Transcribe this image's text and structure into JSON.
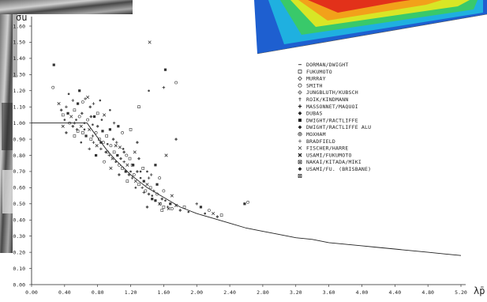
{
  "chart_data": {
    "type": "scatter",
    "ylabel": "σu",
    "xlabel": "λ̄p",
    "xlim": [
      0.0,
      5.2
    ],
    "ylim": [
      0.0,
      1.6
    ],
    "x_ticks": [
      "0.00",
      "0.40",
      "0.80",
      "1.20",
      "1.60",
      "2.00",
      "2.40",
      "2.80",
      "3.20",
      "3.60",
      "4.00",
      "4.40",
      "4.80",
      "5.20"
    ],
    "y_ticks": [
      "0.00",
      "0.10",
      "0.20",
      "0.30",
      "0.40",
      "0.50",
      "0.60",
      "0.70",
      "0.80",
      "0.90",
      "1.00",
      "1.10",
      "1.20",
      "1.30",
      "1.40",
      "1.50",
      "1.60"
    ],
    "grid": false,
    "legend_position": "top-right",
    "legend": [
      {
        "symbol": "dash",
        "label": "DORMAN/DWIGHT"
      },
      {
        "symbol": "square",
        "label": "FUKUMOTO"
      },
      {
        "symbol": "diamond",
        "label": "MURRAY"
      },
      {
        "symbol": "circle",
        "label": "SMITH"
      },
      {
        "symbol": "diamond-dot",
        "label": "JUNGBLUTH/KUBSCH"
      },
      {
        "symbol": "dagger",
        "label": "ROIK/KINDMANN"
      },
      {
        "symbol": "plus",
        "label": "MASSONNET/MAQUOI"
      },
      {
        "symbol": "filled-diamond",
        "label": "DUBAS"
      },
      {
        "symbol": "filled-square",
        "label": "DWIGHT/RACTLIFFE"
      },
      {
        "symbol": "filled-diamond",
        "label": "DWIGHT/RACTLIFFE ALU"
      },
      {
        "symbol": "circle-cross",
        "label": "MOXHAM"
      },
      {
        "symbol": "thin-plus",
        "label": "BRADFIELD"
      },
      {
        "symbol": "x",
        "label": "FISCHER/HARRE"
      },
      {
        "symbol": "bold-x",
        "label": "USAMI/FUKUMOTO"
      },
      {
        "symbol": "box-x",
        "label": "NAKAI/KITADA/MIKI"
      },
      {
        "symbol": "filled-diamond",
        "label": "USAMI/FU. (BRISBANE)"
      },
      {
        "symbol": "box-x",
        "label": ""
      }
    ],
    "series": [
      {
        "type": "line",
        "description_curve_x": [
          0.0,
          0.673,
          0.7,
          0.8,
          0.9,
          1.0,
          1.1,
          1.2,
          1.3,
          1.4,
          1.5,
          1.6,
          1.7,
          1.8,
          1.9,
          2.0,
          2.2,
          2.4,
          2.6,
          2.8,
          3.0,
          3.2,
          3.4,
          3.6,
          3.8,
          4.0,
          4.2,
          4.4,
          4.6,
          4.8,
          5.0,
          5.2
        ],
        "y": [
          1.0,
          1.0,
          0.98,
          0.91,
          0.84,
          0.78,
          0.73,
          0.68,
          0.64,
          0.6,
          0.57,
          0.54,
          0.51,
          0.48,
          0.46,
          0.44,
          0.41,
          0.38,
          0.35,
          0.33,
          0.31,
          0.29,
          0.28,
          0.26,
          0.25,
          0.24,
          0.23,
          0.22,
          0.21,
          0.2,
          0.19,
          0.18
        ]
      },
      {
        "type": "scatter",
        "points": [
          [
            0.27,
            1.36
          ],
          [
            0.26,
            1.22
          ],
          [
            0.33,
            1.12
          ],
          [
            0.36,
            1.08
          ],
          [
            0.38,
            1.05
          ],
          [
            0.4,
            1.02
          ],
          [
            0.42,
            1.1
          ],
          [
            0.44,
            1.06
          ],
          [
            0.46,
            1.0
          ],
          [
            0.48,
            1.04
          ],
          [
            0.5,
            0.98
          ],
          [
            0.52,
            1.08
          ],
          [
            0.54,
            1.02
          ],
          [
            0.55,
            0.96
          ],
          [
            0.56,
            1.12
          ],
          [
            0.58,
            1.04
          ],
          [
            0.6,
            0.98
          ],
          [
            0.61,
            1.06
          ],
          [
            0.62,
            0.94
          ],
          [
            0.64,
            1.0
          ],
          [
            0.65,
            1.15
          ],
          [
            0.66,
            0.92
          ],
          [
            0.68,
            1.02
          ],
          [
            0.7,
            0.96
          ],
          [
            0.71,
            1.1
          ],
          [
            0.72,
            0.9
          ],
          [
            0.74,
            0.99
          ],
          [
            0.75,
            0.88
          ],
          [
            0.76,
            1.04
          ],
          [
            0.78,
            0.94
          ],
          [
            0.79,
            0.86
          ],
          [
            0.8,
            0.98
          ],
          [
            0.82,
            0.9
          ],
          [
            0.83,
            1.14
          ],
          [
            0.84,
            0.84
          ],
          [
            0.86,
            0.95
          ],
          [
            0.87,
            0.88
          ],
          [
            0.88,
            1.05
          ],
          [
            0.9,
            0.82
          ],
          [
            0.91,
            0.92
          ],
          [
            0.92,
            0.87
          ],
          [
            0.94,
            0.8
          ],
          [
            0.95,
            0.96
          ],
          [
            0.96,
            0.86
          ],
          [
            0.98,
            0.78
          ],
          [
            0.99,
            0.9
          ],
          [
            1.0,
            0.82
          ],
          [
            1.02,
            0.76
          ],
          [
            1.03,
            0.88
          ],
          [
            1.04,
            0.8
          ],
          [
            1.06,
            0.74
          ],
          [
            1.07,
            0.85
          ],
          [
            1.08,
            0.78
          ],
          [
            1.1,
            0.72
          ],
          [
            1.11,
            0.84
          ],
          [
            1.12,
            0.76
          ],
          [
            1.14,
            0.7
          ],
          [
            1.15,
            0.8
          ],
          [
            1.16,
            0.74
          ],
          [
            1.18,
            0.68
          ],
          [
            1.19,
            0.78
          ],
          [
            1.2,
            0.7
          ],
          [
            1.22,
            0.66
          ],
          [
            1.23,
            0.74
          ],
          [
            1.24,
            0.68
          ],
          [
            1.26,
            0.64
          ],
          [
            1.28,
            0.7
          ],
          [
            1.3,
            0.62
          ],
          [
            1.32,
            0.66
          ],
          [
            1.34,
            0.6
          ],
          [
            1.36,
            0.64
          ],
          [
            1.38,
            0.58
          ],
          [
            1.4,
            0.62
          ],
          [
            1.42,
            0.56
          ],
          [
            1.44,
            0.6
          ],
          [
            1.46,
            0.55
          ],
          [
            1.48,
            0.58
          ],
          [
            1.5,
            0.52
          ],
          [
            1.52,
            0.56
          ],
          [
            1.55,
            0.5
          ],
          [
            1.58,
            0.53
          ],
          [
            1.6,
            0.48
          ],
          [
            1.62,
            0.52
          ],
          [
            1.65,
            0.48
          ],
          [
            1.68,
            0.5
          ],
          [
            1.7,
            0.47
          ],
          [
            1.75,
            0.49
          ],
          [
            1.8,
            0.46
          ],
          [
            1.85,
            0.48
          ],
          [
            1.9,
            0.45
          ],
          [
            2.0,
            0.5
          ],
          [
            2.05,
            0.48
          ],
          [
            2.15,
            0.46
          ],
          [
            2.2,
            0.44
          ],
          [
            2.25,
            0.42
          ],
          [
            2.3,
            0.43
          ],
          [
            0.45,
            1.18
          ],
          [
            0.5,
            1.14
          ],
          [
            0.58,
            1.2
          ],
          [
            0.62,
            1.13
          ],
          [
            0.68,
            1.16
          ],
          [
            0.72,
            1.04
          ],
          [
            0.8,
            1.06
          ],
          [
            0.85,
            1.02
          ],
          [
            1.0,
            1.0
          ],
          [
            1.05,
            0.98
          ],
          [
            1.1,
            0.94
          ],
          [
            1.25,
            0.82
          ],
          [
            1.3,
            0.78
          ],
          [
            1.35,
            0.72
          ],
          [
            1.4,
            0.7
          ],
          [
            1.45,
            0.68
          ],
          [
            1.5,
            0.74
          ],
          [
            1.55,
            0.66
          ],
          [
            1.63,
            0.8
          ],
          [
            1.75,
            0.9
          ],
          [
            1.3,
            1.1
          ],
          [
            1.42,
            1.2
          ],
          [
            1.6,
            1.22
          ],
          [
            1.62,
            1.33
          ],
          [
            1.75,
            1.25
          ],
          [
            1.43,
            1.5
          ],
          [
            1.28,
            0.88
          ],
          [
            1.2,
            0.96
          ],
          [
            0.95,
            1.08
          ],
          [
            0.75,
            1.12
          ],
          [
            2.58,
            0.5
          ],
          [
            2.62,
            0.51
          ],
          [
            0.38,
            0.98
          ],
          [
            0.42,
            0.94
          ],
          [
            0.52,
            0.92
          ],
          [
            0.6,
            0.88
          ],
          [
            0.7,
            0.84
          ],
          [
            0.78,
            0.8
          ],
          [
            0.88,
            0.76
          ],
          [
            0.96,
            0.72
          ],
          [
            1.06,
            0.68
          ],
          [
            1.16,
            0.64
          ],
          [
            1.26,
            0.6
          ],
          [
            1.36,
            0.57
          ],
          [
            1.46,
            0.53
          ],
          [
            1.56,
            0.5
          ],
          [
            1.66,
            0.47
          ],
          [
            0.52,
            1.0
          ],
          [
            0.56,
            0.95
          ],
          [
            0.64,
            0.96
          ],
          [
            0.74,
            0.92
          ],
          [
            0.84,
            0.88
          ],
          [
            0.92,
            0.82
          ],
          [
            1.02,
            0.86
          ],
          [
            1.12,
            0.82
          ],
          [
            1.22,
            0.74
          ],
          [
            1.32,
            0.7
          ],
          [
            1.42,
            0.66
          ],
          [
            1.52,
            0.62
          ],
          [
            1.6,
            0.58
          ],
          [
            1.7,
            0.55
          ],
          [
            1.4,
            0.48
          ],
          [
            1.58,
            0.46
          ],
          [
            2.1,
            0.44
          ]
        ]
      }
    ]
  }
}
